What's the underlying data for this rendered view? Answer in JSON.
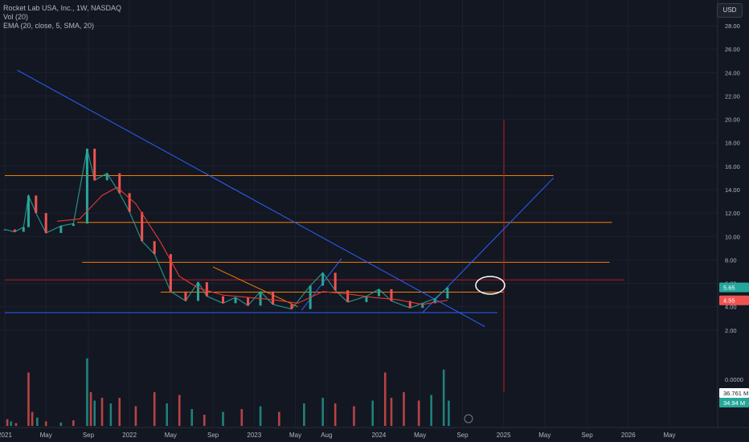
{
  "legend": {
    "symbol_line": "Rocket Lab USA, Inc., 1W, NASDAQ",
    "vol_line": "Vol (20)",
    "ema_line": "EMA (20, close, 5, SMA, 20)"
  },
  "currency": "USD",
  "colors": {
    "background": "#131722",
    "grid": "#1c2030",
    "up": "#26a69a",
    "down": "#ef5350",
    "ema": "#e53935",
    "trendline": "#2962ff",
    "level": "#f57c00",
    "axis_text": "#b2b5be"
  },
  "chart_data": {
    "type": "candlestick",
    "title": "Rocket Lab USA, Inc., 1W, NASDAQ",
    "grid": true,
    "x_ticks": [
      "2021",
      "May",
      "Sep",
      "2022",
      "May",
      "Sep",
      "2023",
      "May",
      "Aug",
      "2024",
      "May",
      "Sep",
      "2025",
      "May",
      "Sep",
      "2026",
      "May"
    ],
    "y_ticks": [
      "28.00",
      "26.00",
      "24.00",
      "22.00",
      "20.00",
      "18.00",
      "16.00",
      "14.00",
      "12.00",
      "10.00",
      "8.00",
      "6.00",
      "4.00",
      "2.00"
    ],
    "ylim": [
      0,
      29
    ],
    "volume_ticks": [
      "0.0000"
    ],
    "price_labels": [
      {
        "text": "5.65",
        "value": 5.65,
        "color": "#26a69a"
      },
      {
        "text": "4.55",
        "value": 4.55,
        "color": "#ef5350"
      },
      {
        "text": "36.761 M",
        "color": "#ffffff"
      },
      {
        "text": "34.94 M",
        "color": "#26a69a"
      }
    ],
    "close_series": [
      {
        "t": 2021.0,
        "y": 10.6
      },
      {
        "t": 2021.08,
        "y": 10.4
      },
      {
        "t": 2021.15,
        "y": 10.8
      },
      {
        "t": 2021.19,
        "y": 13.5
      },
      {
        "t": 2021.25,
        "y": 12.0
      },
      {
        "t": 2021.33,
        "y": 10.3
      },
      {
        "t": 2021.45,
        "y": 10.9
      },
      {
        "t": 2021.55,
        "y": 11.1
      },
      {
        "t": 2021.66,
        "y": 17.5
      },
      {
        "t": 2021.72,
        "y": 14.8
      },
      {
        "t": 2021.82,
        "y": 15.4
      },
      {
        "t": 2021.92,
        "y": 13.7
      },
      {
        "t": 2022.0,
        "y": 12.1
      },
      {
        "t": 2022.1,
        "y": 9.6
      },
      {
        "t": 2022.2,
        "y": 8.5
      },
      {
        "t": 2022.33,
        "y": 5.3
      },
      {
        "t": 2022.45,
        "y": 4.5
      },
      {
        "t": 2022.55,
        "y": 6.1
      },
      {
        "t": 2022.62,
        "y": 4.9
      },
      {
        "t": 2022.75,
        "y": 4.3
      },
      {
        "t": 2022.85,
        "y": 4.8
      },
      {
        "t": 2022.95,
        "y": 4.1
      },
      {
        "t": 2023.05,
        "y": 5.3
      },
      {
        "t": 2023.15,
        "y": 4.2
      },
      {
        "t": 2023.3,
        "y": 3.8
      },
      {
        "t": 2023.45,
        "y": 5.8
      },
      {
        "t": 2023.55,
        "y": 6.9
      },
      {
        "t": 2023.65,
        "y": 5.4
      },
      {
        "t": 2023.75,
        "y": 4.4
      },
      {
        "t": 2023.9,
        "y": 4.9
      },
      {
        "t": 2024.0,
        "y": 5.5
      },
      {
        "t": 2024.1,
        "y": 4.5
      },
      {
        "t": 2024.25,
        "y": 3.9
      },
      {
        "t": 2024.35,
        "y": 4.3
      },
      {
        "t": 2024.45,
        "y": 4.7
      },
      {
        "t": 2024.55,
        "y": 5.65
      }
    ],
    "ema_series": [
      {
        "t": 2021.42,
        "y": 11.3
      },
      {
        "t": 2021.6,
        "y": 11.5
      },
      {
        "t": 2021.78,
        "y": 13.5
      },
      {
        "t": 2021.9,
        "y": 14.2
      },
      {
        "t": 2022.05,
        "y": 12.8
      },
      {
        "t": 2022.25,
        "y": 9.5
      },
      {
        "t": 2022.4,
        "y": 6.6
      },
      {
        "t": 2022.55,
        "y": 5.6
      },
      {
        "t": 2022.75,
        "y": 5.0
      },
      {
        "t": 2022.95,
        "y": 4.8
      },
      {
        "t": 2023.15,
        "y": 4.6
      },
      {
        "t": 2023.35,
        "y": 4.3
      },
      {
        "t": 2023.55,
        "y": 5.3
      },
      {
        "t": 2023.75,
        "y": 5.1
      },
      {
        "t": 2023.95,
        "y": 4.8
      },
      {
        "t": 2024.15,
        "y": 4.6
      },
      {
        "t": 2024.35,
        "y": 4.2
      },
      {
        "t": 2024.55,
        "y": 4.55
      }
    ],
    "horizontal_levels": [
      15.2,
      11.2,
      7.8,
      6.3,
      5.25,
      3.5
    ],
    "trendlines": [
      {
        "from": {
          "t": 2021.1,
          "y": 24.2
        },
        "to": {
          "t": 2024.85,
          "y": 2.3
        }
      },
      {
        "from": {
          "t": 2023.38,
          "y": 3.7
        },
        "to": {
          "t": 2023.7,
          "y": 8.1
        }
      },
      {
        "from": {
          "t": 2024.35,
          "y": 3.5
        },
        "to": {
          "t": 2025.4,
          "y": 15.0
        }
      },
      {
        "from": {
          "t": 2022.67,
          "y": 7.4
        },
        "to": {
          "t": 2023.35,
          "y": 4.0
        }
      }
    ],
    "volume": [
      {
        "t": 2021.02,
        "v": 0.12,
        "up": false
      },
      {
        "t": 2021.05,
        "v": 0.08,
        "up": true
      },
      {
        "t": 2021.09,
        "v": 0.05,
        "up": false
      },
      {
        "t": 2021.19,
        "v": 0.95,
        "up": false
      },
      {
        "t": 2021.22,
        "v": 0.25,
        "up": false
      },
      {
        "t": 2021.26,
        "v": 0.15,
        "up": true
      },
      {
        "t": 2021.33,
        "v": 0.08,
        "up": false
      },
      {
        "t": 2021.45,
        "v": 0.06,
        "up": true
      },
      {
        "t": 2021.55,
        "v": 0.1,
        "up": false
      },
      {
        "t": 2021.66,
        "v": 1.2,
        "up": true
      },
      {
        "t": 2021.69,
        "v": 0.6,
        "up": false
      },
      {
        "t": 2021.72,
        "v": 0.45,
        "up": true
      },
      {
        "t": 2021.78,
        "v": 0.5,
        "up": false
      },
      {
        "t": 2021.85,
        "v": 0.4,
        "up": true
      },
      {
        "t": 2021.92,
        "v": 0.5,
        "up": false
      },
      {
        "t": 2022.05,
        "v": 0.35,
        "up": false
      },
      {
        "t": 2022.2,
        "v": 0.6,
        "up": false
      },
      {
        "t": 2022.3,
        "v": 0.4,
        "up": true
      },
      {
        "t": 2022.4,
        "v": 0.55,
        "up": false
      },
      {
        "t": 2022.5,
        "v": 0.3,
        "up": true
      },
      {
        "t": 2022.6,
        "v": 0.2,
        "up": false
      },
      {
        "t": 2022.75,
        "v": 0.25,
        "up": true
      },
      {
        "t": 2022.9,
        "v": 0.3,
        "up": false
      },
      {
        "t": 2023.05,
        "v": 0.35,
        "up": true
      },
      {
        "t": 2023.2,
        "v": 0.25,
        "up": false
      },
      {
        "t": 2023.4,
        "v": 0.4,
        "up": true
      },
      {
        "t": 2023.55,
        "v": 0.5,
        "up": true
      },
      {
        "t": 2023.65,
        "v": 0.4,
        "up": false
      },
      {
        "t": 2023.8,
        "v": 0.35,
        "up": false
      },
      {
        "t": 2023.95,
        "v": 0.45,
        "up": true
      },
      {
        "t": 2024.05,
        "v": 0.95,
        "up": false
      },
      {
        "t": 2024.1,
        "v": 0.5,
        "up": false
      },
      {
        "t": 2024.2,
        "v": 0.6,
        "up": false
      },
      {
        "t": 2024.32,
        "v": 0.45,
        "up": false
      },
      {
        "t": 2024.42,
        "v": 0.55,
        "up": true
      },
      {
        "t": 2024.52,
        "v": 1.0,
        "up": true
      },
      {
        "t": 2024.56,
        "v": 0.45,
        "up": true
      }
    ]
  }
}
